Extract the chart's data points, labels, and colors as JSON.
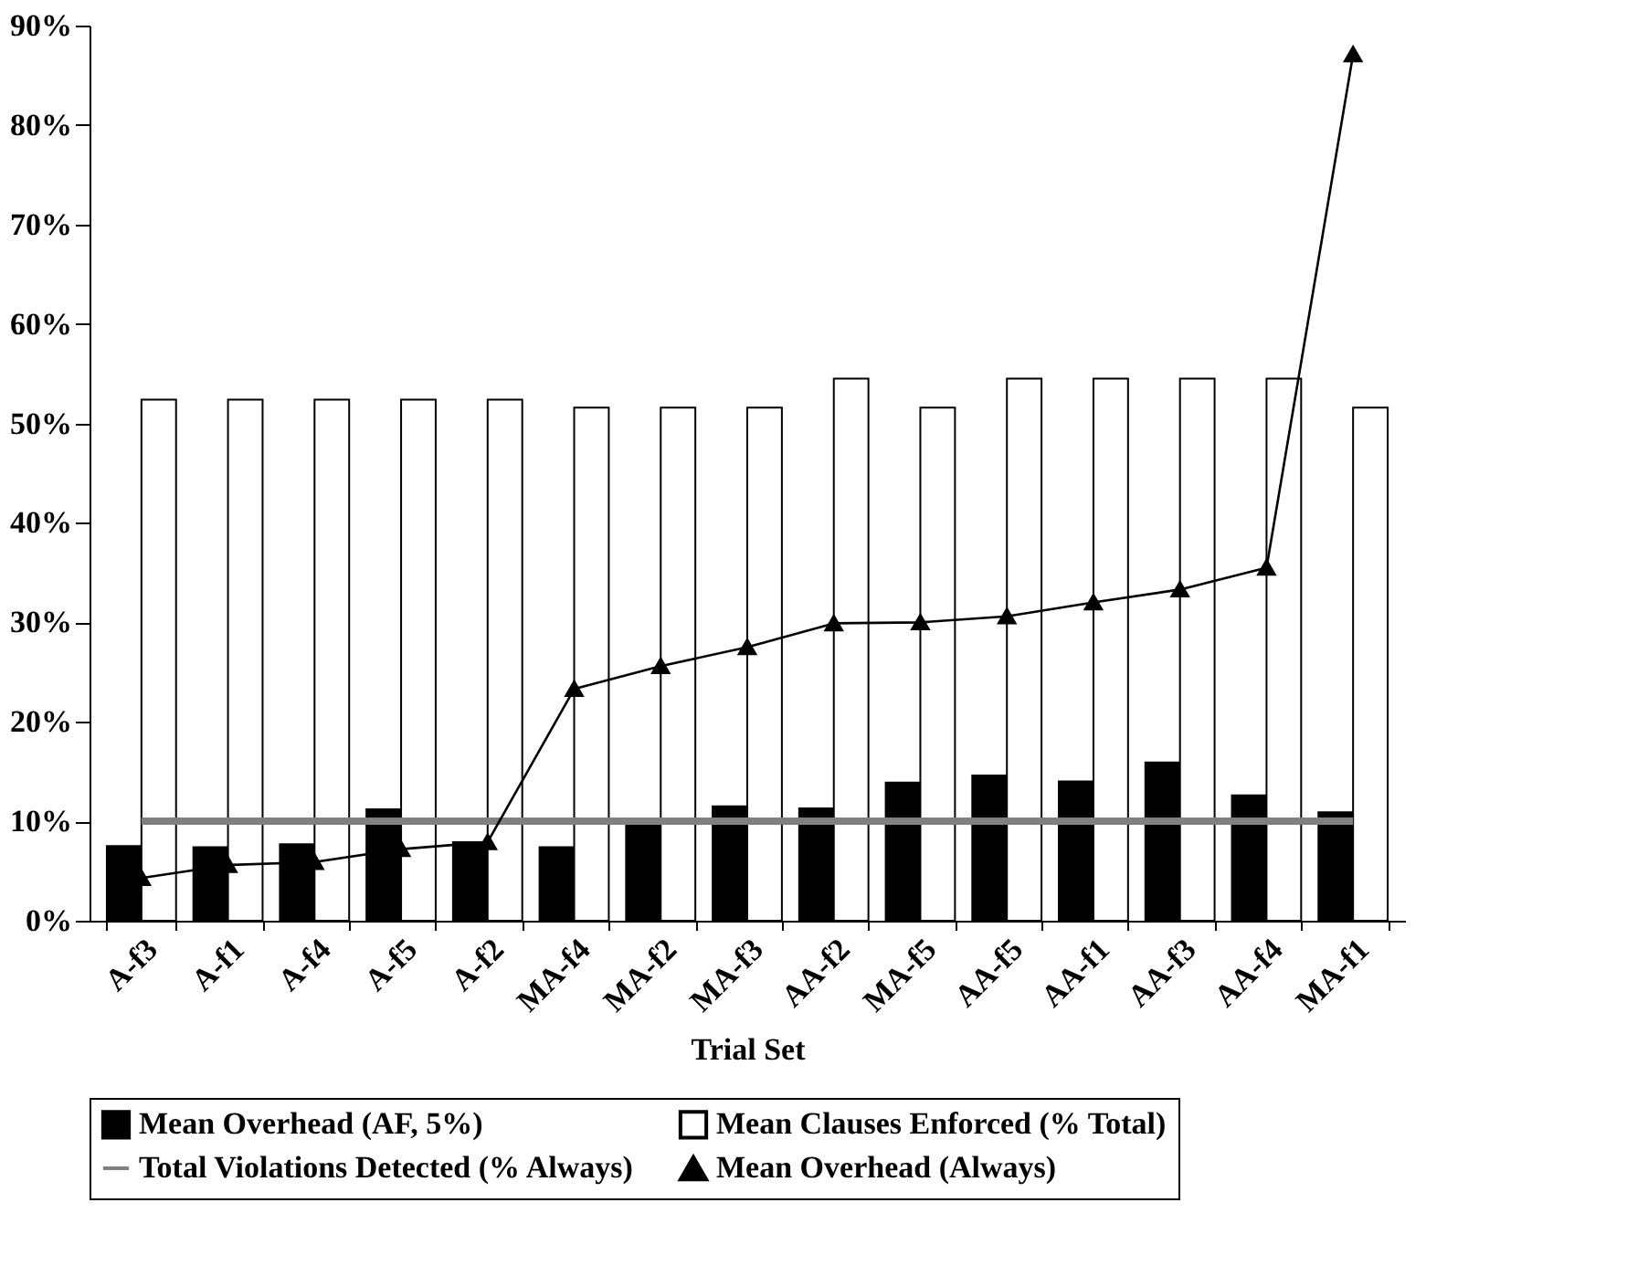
{
  "chart_data": {
    "type": "bar",
    "xlabel": "Trial Set",
    "categories": [
      "A-f3",
      "A-f1",
      "A-f4",
      "A-f5",
      "A-f2",
      "MA-f4",
      "MA-f2",
      "MA-f3",
      "AA-f2",
      "MA-f5",
      "AA-f5",
      "AA-f1",
      "AA-f3",
      "AA-f4",
      "MA-f1"
    ],
    "series": [
      {
        "name": "Mean Overhead (AF, 5%)",
        "color": "#000000",
        "values": [
          7.5,
          7.4,
          7.7,
          11.2,
          7.9,
          7.4,
          9.6,
          11.5,
          11.3,
          13.9,
          14.6,
          14.0,
          15.9,
          12.6,
          10.9
        ]
      },
      {
        "name": "Mean Clauses Enforced (% Total)",
        "color": "#ffffff",
        "values": [
          52.4,
          52.4,
          52.4,
          52.4,
          52.4,
          51.6,
          51.6,
          51.6,
          54.5,
          51.6,
          54.5,
          54.5,
          54.5,
          54.5,
          51.6
        ]
      },
      {
        "name": "Total Violations Detected (% Always)",
        "type": "line",
        "color": "#808080",
        "marker": "none",
        "values": [
          10,
          10,
          10,
          10,
          10,
          10,
          10,
          10,
          10,
          10,
          10,
          10,
          10,
          10,
          10
        ]
      },
      {
        "name": "Mean Overhead (Always)",
        "type": "line",
        "color": "#000000",
        "marker": "triangle",
        "values": [
          4.3,
          5.6,
          5.9,
          7.2,
          7.9,
          23.3,
          25.6,
          27.5,
          29.9,
          30.0,
          30.6,
          32.0,
          33.3,
          35.5,
          87.1
        ]
      }
    ],
    "ylim": [
      0,
      90
    ],
    "yticks": [
      {
        "value": 0,
        "label": "0%"
      },
      {
        "value": 10,
        "label": "10%"
      },
      {
        "value": 20,
        "label": "20%"
      },
      {
        "value": 30,
        "label": "30%"
      },
      {
        "value": 40,
        "label": "40%"
      },
      {
        "value": 50,
        "label": "50%"
      },
      {
        "value": 60,
        "label": "60%"
      },
      {
        "value": 70,
        "label": "70%"
      },
      {
        "value": 80,
        "label": "80%"
      },
      {
        "value": 90,
        "label": "90%"
      }
    ],
    "grid": false,
    "legend": "bottom"
  }
}
